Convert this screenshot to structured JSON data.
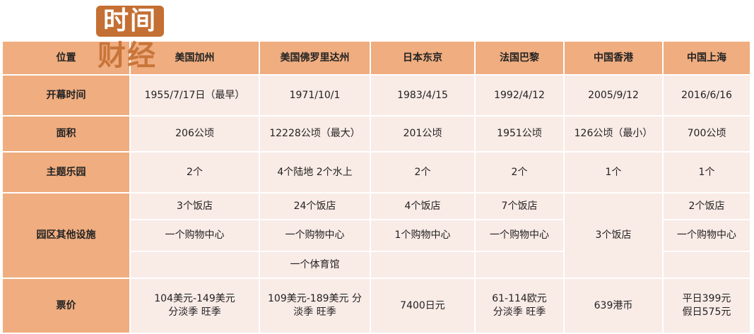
{
  "logo": {
    "line1": "时间",
    "line2": "财经",
    "color": "#c46f33"
  },
  "colors": {
    "header_bg": "#efad80",
    "cell_bg": "#f9ebe6"
  },
  "header": [
    "位置",
    "美国加州",
    "美国佛罗里达州",
    "日本东京",
    "法国巴黎",
    "中国香港",
    "中国上海"
  ],
  "rows": {
    "opening": {
      "label": "开幕时间",
      "values": [
        "1955/7/17日（最早）",
        "1971/10/1",
        "1983/4/15",
        "1992/4/12",
        "2005/9/12",
        "2016/6/16"
      ]
    },
    "area": {
      "label": "面积",
      "values": [
        "206公顷",
        "12228公顷（最大）",
        "201公顷",
        "1951公顷",
        "126公顷（最小）",
        "700公顷"
      ]
    },
    "parks": {
      "label": "主题乐园",
      "values": [
        "2个",
        "4个陆地 2个水上",
        "2个",
        "2个",
        "1个",
        "1个"
      ]
    },
    "facilities": {
      "label": "园区其他设施",
      "row1": [
        "3个饭店",
        "24个饭店",
        "4个饭店",
        "7个饭店",
        "2个饭店"
      ],
      "row2": [
        "一个购物中心",
        "一个购物中心",
        "1个购物中心",
        "一个购物中心",
        "一个购物中心"
      ],
      "row3": [
        "",
        "一个体育馆",
        "",
        "",
        ""
      ],
      "hongkong": "3个饭店"
    },
    "price": {
      "label": "票价",
      "values": [
        "104美元-149美元\n分淡季 旺季",
        "109美元-189美元 分\n淡季 旺季",
        "7400日元",
        "61-114欧元\n分淡季 旺季",
        "639港币",
        "平日399元\n假日575元"
      ]
    }
  }
}
